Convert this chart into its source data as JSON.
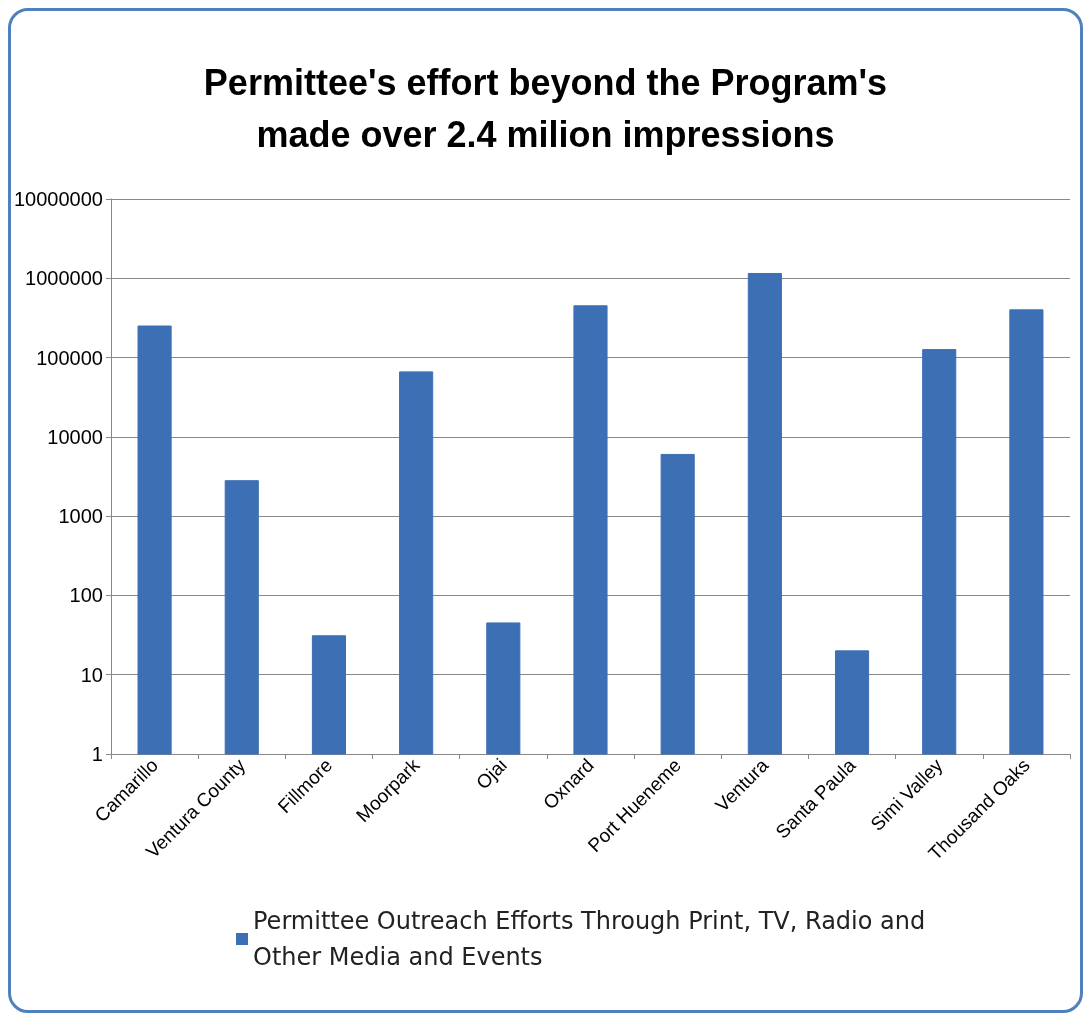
{
  "chart_data": {
    "type": "bar",
    "title": "Permittee's effort beyond the Program's\nmade over 2.4 milion impressions",
    "categories": [
      "Camarillo",
      "Ventura County",
      "Fillmore",
      "Moorpark",
      "Ojai",
      "Oxnard",
      "Port Hueneme",
      "Ventura",
      "Santa Paula",
      "Simi Valley",
      "Thousand Oaks"
    ],
    "series": [
      {
        "name": "Permittee Outreach Efforts Through Print, TV, Radio and Other Media and Events",
        "color": "#3d6fb5",
        "values": [
          250000,
          2800,
          31,
          66000,
          45,
          450000,
          6000,
          1150000,
          20,
          126000,
          400000
        ]
      }
    ],
    "log": true,
    "ylim": [
      1,
      10000000
    ],
    "yticks": [
      1,
      10,
      100,
      1000,
      10000,
      100000,
      1000000,
      10000000
    ],
    "grid": "y",
    "legend": "bottom"
  }
}
